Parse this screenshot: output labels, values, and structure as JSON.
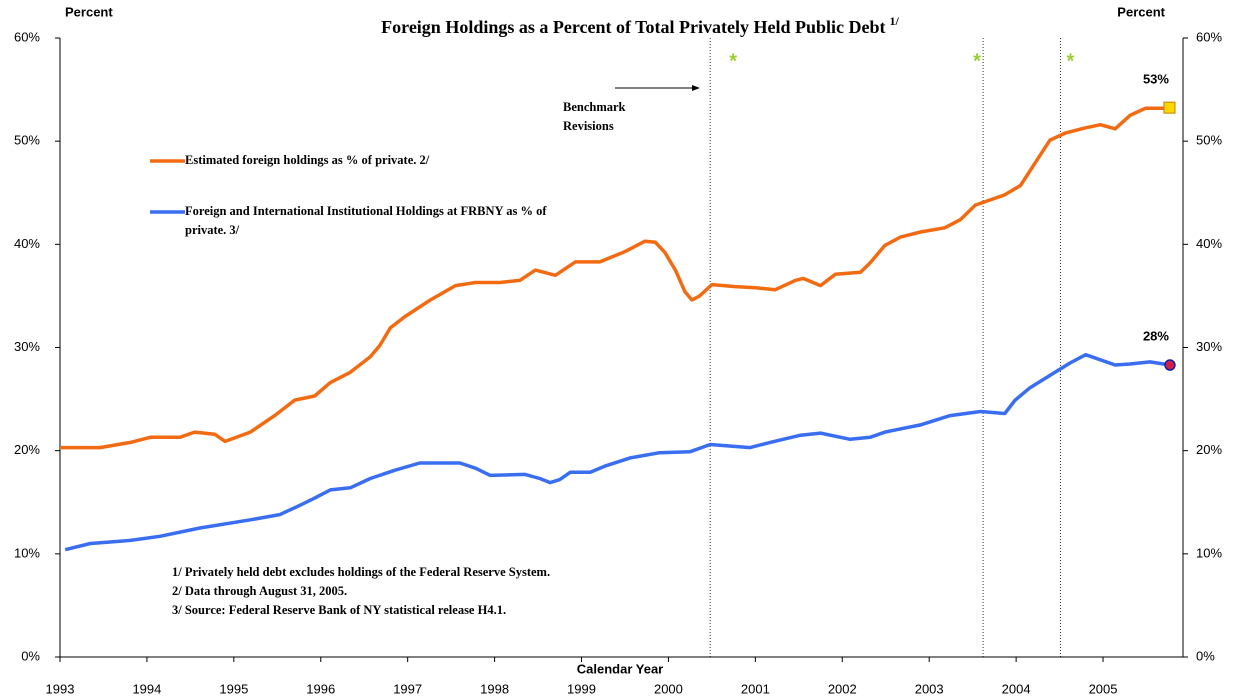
{
  "chart_data": {
    "type": "line",
    "title": "Foreign Holdings as a Percent of Total Privately Held Public Debt",
    "title_footnote": "1/",
    "y_label_left": "Percent",
    "y_label_right": "Percent",
    "x_label": "Calendar Year",
    "xlim": [
      1993,
      2005.92
    ],
    "xticks": [
      1993,
      1994,
      1995,
      1996,
      1997,
      1998,
      1999,
      2000,
      2001,
      2002,
      2003,
      2004,
      2005
    ],
    "ylim": [
      0,
      60
    ],
    "yticks": [
      {
        "value": 0,
        "label": "0%"
      },
      {
        "value": 10,
        "label": "10%"
      },
      {
        "value": 20,
        "label": "20%"
      },
      {
        "value": 30,
        "label": "30%"
      },
      {
        "value": 40,
        "label": "40%"
      },
      {
        "value": 50,
        "label": "50%"
      },
      {
        "value": 60,
        "label": "60%"
      }
    ],
    "y2lim": [
      0,
      60
    ],
    "y2ticks": [
      {
        "value": 0,
        "label": "0%"
      },
      {
        "value": 10,
        "label": "10%"
      },
      {
        "value": 20,
        "label": "20%"
      },
      {
        "value": 30,
        "label": "30%"
      },
      {
        "value": 40,
        "label": "40%"
      },
      {
        "value": 50,
        "label": "50%"
      },
      {
        "value": 60,
        "label": "60%"
      }
    ],
    "series": [
      {
        "name": "Estimated foreign holdings as % of private. 2/",
        "color": "#f26b12",
        "end_marker": "square",
        "end_label": "53%",
        "x": [
          1993.0,
          1993.46,
          1993.81,
          1994.04,
          1994.38,
          1994.55,
          1994.78,
          1994.9,
          1995.19,
          1995.47,
          1995.7,
          1995.93,
          1996.11,
          1996.34,
          1996.57,
          1996.68,
          1996.8,
          1996.97,
          1997.26,
          1997.55,
          1997.78,
          1998.06,
          1998.29,
          1998.47,
          1998.7,
          1998.93,
          1999.21,
          1999.5,
          1999.73,
          1999.85,
          1999.96,
          2000.08,
          2000.19,
          2000.27,
          2000.36,
          2000.5,
          2000.77,
          2001.0,
          2001.23,
          2001.46,
          2001.55,
          2001.75,
          2001.92,
          2002.21,
          2002.32,
          2002.49,
          2002.67,
          2002.9,
          2003.18,
          2003.36,
          2003.53,
          2003.7,
          2003.87,
          2004.05,
          2004.22,
          2004.39,
          2004.57,
          2004.8,
          2004.97,
          2005.14,
          2005.31,
          2005.49,
          2005.77
        ],
        "values": [
          20.3,
          20.3,
          20.8,
          21.3,
          21.3,
          21.8,
          21.6,
          20.9,
          21.8,
          23.4,
          24.9,
          25.3,
          26.6,
          27.6,
          29.1,
          30.2,
          31.9,
          33.0,
          34.6,
          36.0,
          36.3,
          36.3,
          36.5,
          37.5,
          37.0,
          38.3,
          38.3,
          39.3,
          40.3,
          40.2,
          39.2,
          37.5,
          35.4,
          34.6,
          35.0,
          36.1,
          35.9,
          35.8,
          35.6,
          36.5,
          36.7,
          36.0,
          37.1,
          37.3,
          38.2,
          39.9,
          40.7,
          41.2,
          41.6,
          42.4,
          43.8,
          44.3,
          44.8,
          45.7,
          47.9,
          50.1,
          50.8,
          51.3,
          51.6,
          51.2,
          52.5,
          53.2,
          53.2
        ]
      },
      {
        "name": "Foreign and International Institutional Holdings at FRBNY as % of private. 3/",
        "color": "#3a6ef0",
        "end_marker": "circle",
        "end_label": "28%",
        "x": [
          1993.06,
          1993.35,
          1993.81,
          1994.15,
          1994.61,
          1995.19,
          1995.53,
          1995.76,
          1995.93,
          1996.11,
          1996.34,
          1996.57,
          1996.85,
          1997.14,
          1997.6,
          1997.78,
          1997.95,
          1998.35,
          1998.52,
          1998.64,
          1998.75,
          1998.87,
          1999.1,
          1999.27,
          1999.56,
          1999.9,
          2000.25,
          2000.48,
          2000.94,
          2001.17,
          2001.52,
          2001.75,
          2002.09,
          2002.32,
          2002.49,
          2002.9,
          2003.24,
          2003.59,
          2003.87,
          2003.99,
          2004.16,
          2004.39,
          2004.62,
          2004.8,
          2005.14,
          2005.31,
          2005.54,
          2005.77
        ],
        "values": [
          10.4,
          11.0,
          11.3,
          11.7,
          12.5,
          13.3,
          13.8,
          14.7,
          15.4,
          16.2,
          16.4,
          17.3,
          18.1,
          18.8,
          18.8,
          18.3,
          17.6,
          17.7,
          17.3,
          16.9,
          17.2,
          17.9,
          17.9,
          18.5,
          19.3,
          19.8,
          19.9,
          20.6,
          20.3,
          20.8,
          21.5,
          21.7,
          21.1,
          21.3,
          21.8,
          22.5,
          23.4,
          23.8,
          23.6,
          24.9,
          26.1,
          27.3,
          28.5,
          29.3,
          28.3,
          28.4,
          28.6,
          28.3
        ]
      }
    ],
    "revision_lines": [
      2000.48,
      2003.62,
      2004.51
    ],
    "revision_marker": "*",
    "annotation": "Benchmark Revisions",
    "notes": [
      "1/  Privately held debt excludes holdings of the Federal Reserve System.",
      "2/  Data through August 31, 2005.",
      "3/  Source: Federal Reserve Bank of NY statistical release H4.1."
    ]
  }
}
